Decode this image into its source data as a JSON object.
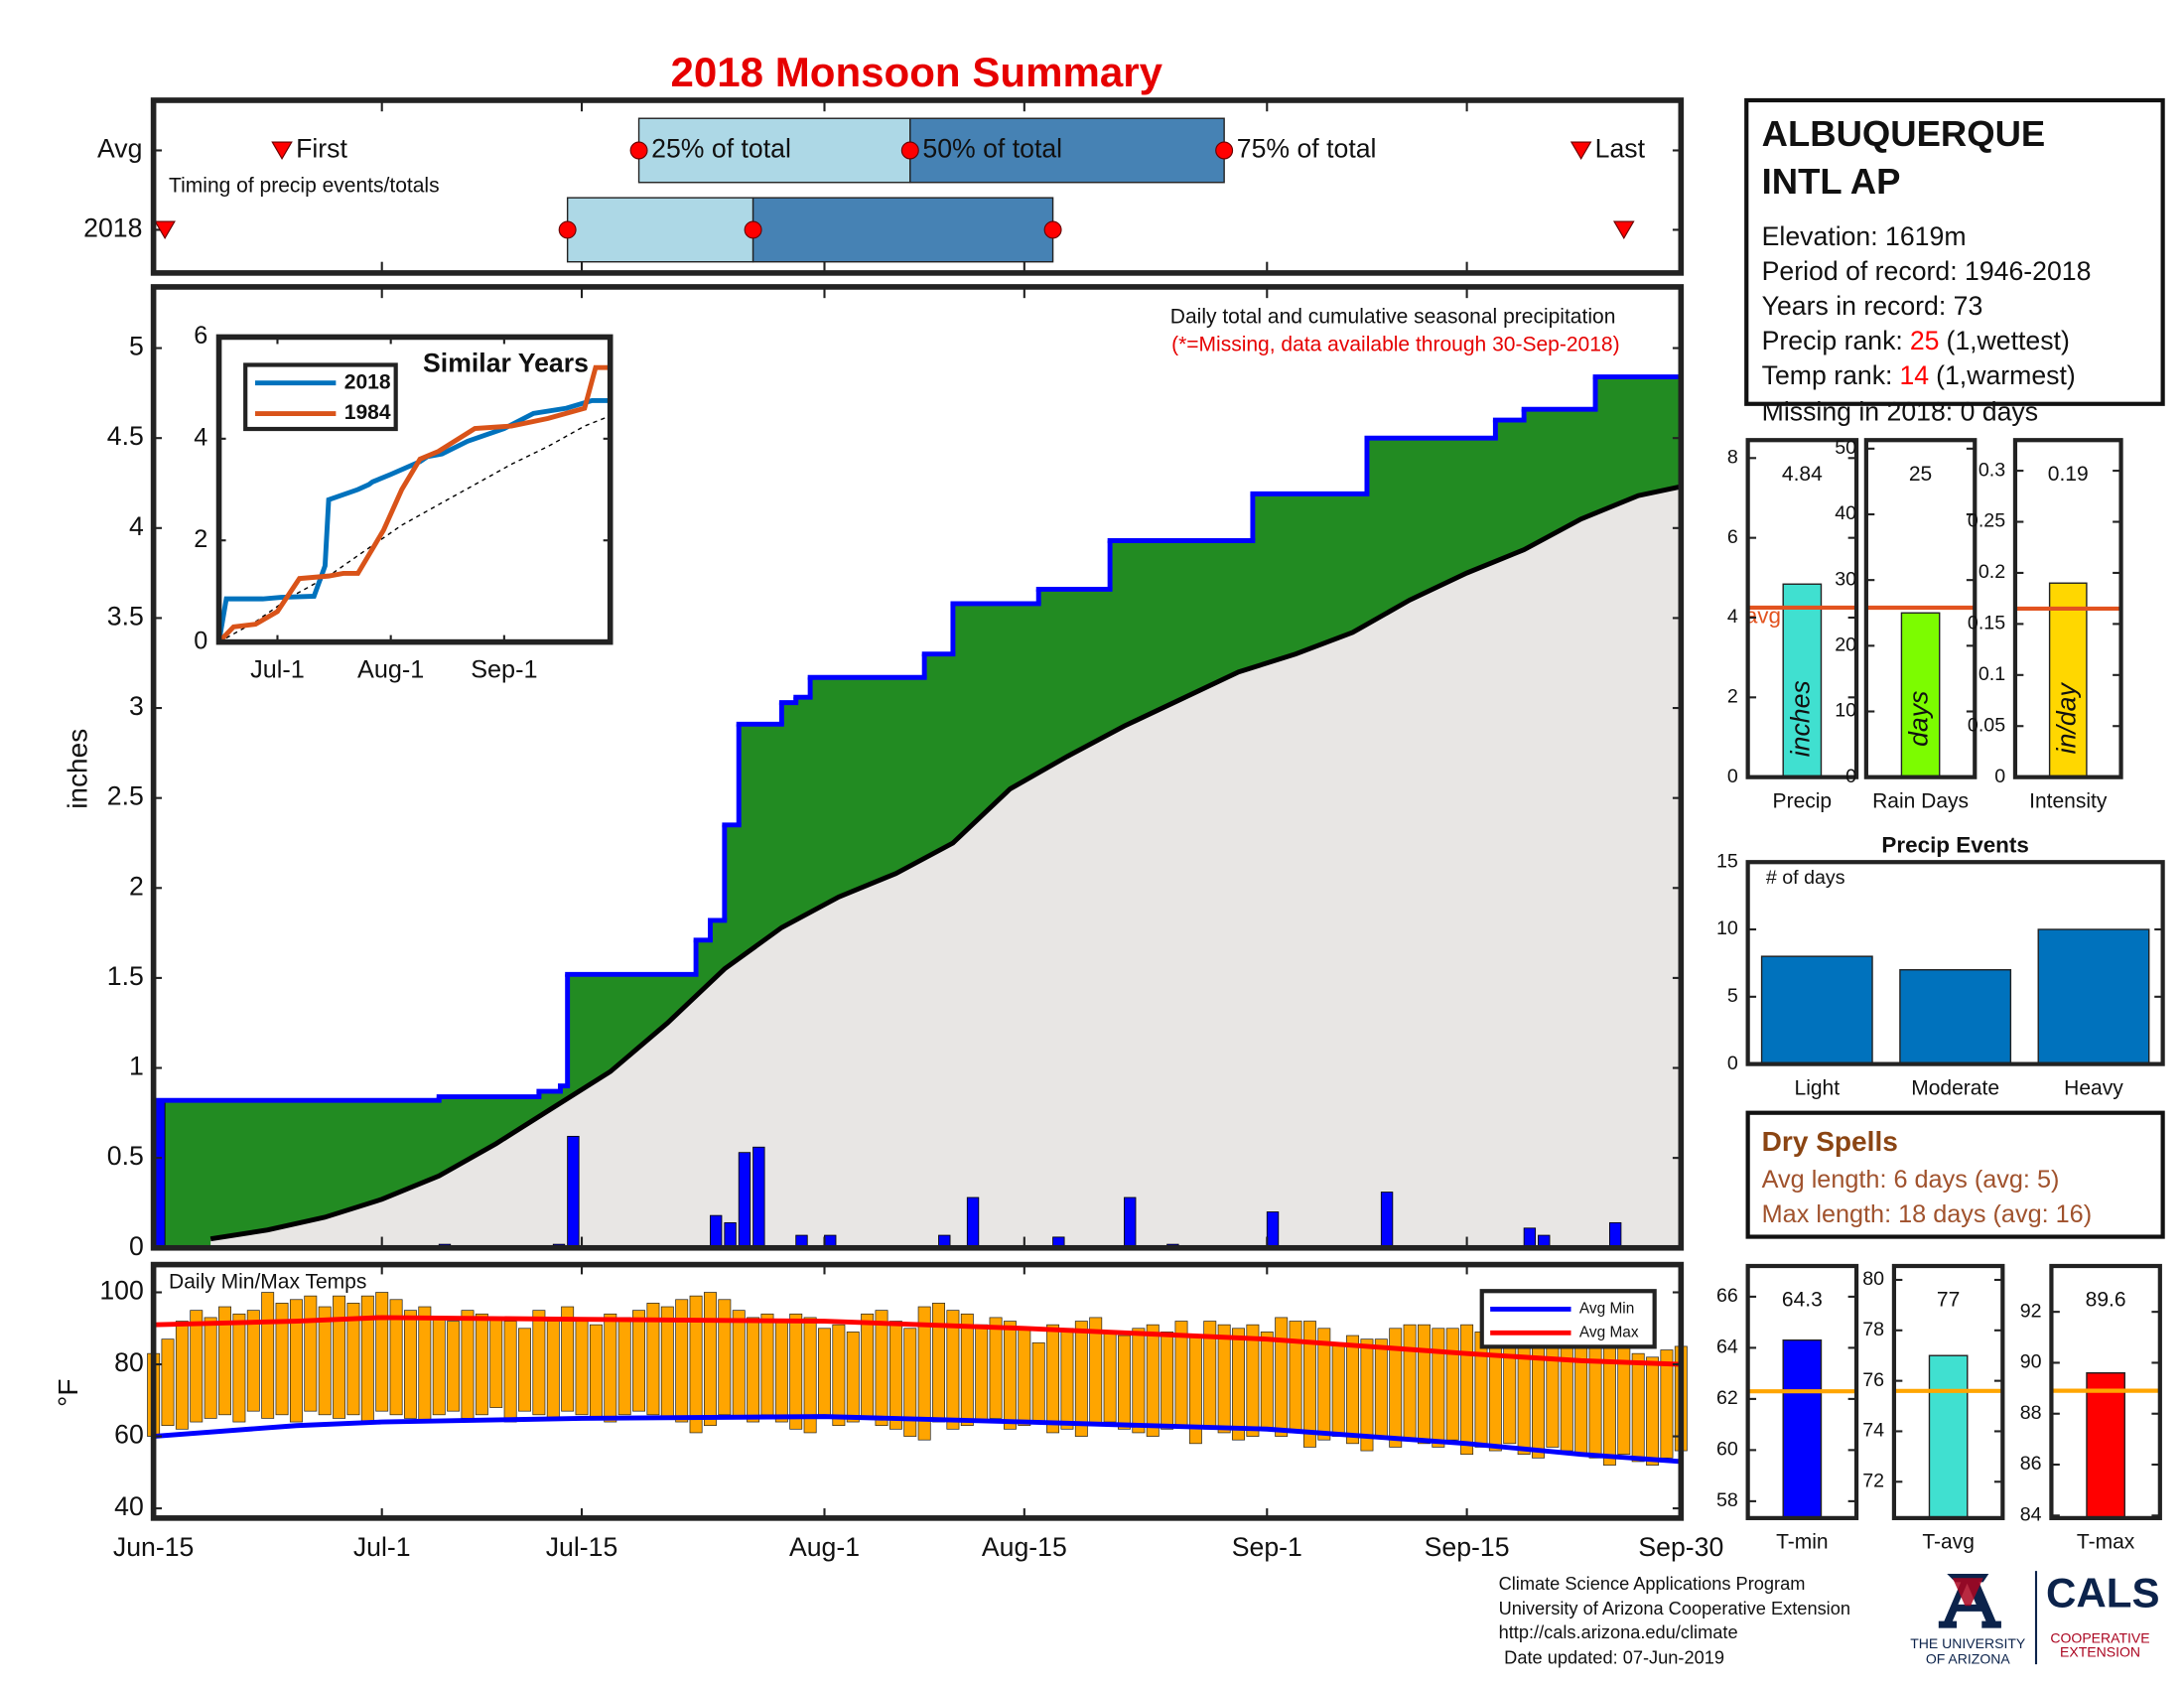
{
  "chart_data": [
    {
      "type": "timing",
      "title": "2018 Monsoon Summary",
      "note": "Timing of precip events/totals",
      "markers": [
        "First",
        "25% of total",
        "50% of total",
        "75% of total",
        "Last"
      ],
      "rows": [
        {
          "name": "Avg",
          "values": [
            9,
            34,
            53,
            75,
            100
          ]
        },
        {
          "name": "2018",
          "values": [
            0.8,
            29,
            42,
            63,
            103
          ]
        }
      ],
      "xlim": [
        0,
        107
      ],
      "colors": [
        "#add8e6",
        "#4682b4"
      ],
      "marker_color": "#ff0000"
    },
    {
      "type": "cumulative",
      "ylabel": "inches",
      "note": "Daily total and cumulative seasonal precipitation",
      "note2": "(*=Missing, data available through 30-Sep-2018)",
      "xlim": [
        0,
        107
      ],
      "ylim": [
        0,
        5.34
      ],
      "yticks": [
        0,
        0.5,
        1,
        1.5,
        2,
        2.5,
        3,
        3.5,
        4,
        4.5,
        5
      ],
      "cumulative": {
        "color": "#0000ff",
        "x": [
          0,
          20,
          27,
          28.5,
          29,
          38,
          39,
          40,
          41,
          44,
          45,
          46,
          54,
          56,
          62,
          67,
          77,
          85,
          94,
          96,
          101
        ],
        "values": [
          0.82,
          0.84,
          0.87,
          0.9,
          1.52,
          1.71,
          1.82,
          2.35,
          2.91,
          3.03,
          3.06,
          3.17,
          3.3,
          3.58,
          3.66,
          3.93,
          4.19,
          4.5,
          4.6,
          4.66,
          4.84
        ]
      },
      "average": {
        "color": "#000000",
        "x": [
          4,
          8,
          12,
          16,
          20,
          24,
          28,
          32,
          36,
          40,
          44,
          48,
          52,
          56,
          60,
          64,
          68,
          72,
          76,
          80,
          84,
          88,
          92,
          96,
          100,
          104,
          107
        ],
        "values": [
          0.05,
          0.1,
          0.17,
          0.27,
          0.4,
          0.58,
          0.78,
          0.98,
          1.25,
          1.55,
          1.78,
          1.95,
          2.08,
          2.25,
          2.55,
          2.73,
          2.9,
          3.05,
          3.2,
          3.3,
          3.42,
          3.6,
          3.75,
          3.88,
          4.05,
          4.18,
          4.23
        ]
      },
      "daily": {
        "color": "#0000ff",
        "x": [
          0,
          20,
          28,
          29,
          39,
          40,
          41,
          42,
          45,
          46,
          47,
          48,
          55,
          57,
          63,
          68,
          71,
          77,
          78,
          86,
          96,
          97,
          102
        ],
        "values": [
          0.82,
          0.02,
          0.02,
          0.62,
          0.18,
          0.14,
          0.53,
          0.56,
          0.07,
          0.01,
          0.07,
          0.01,
          0.07,
          0.28,
          0.06,
          0.28,
          0.02,
          0.01,
          0.2,
          0.31,
          0.11,
          0.07,
          0.14
        ]
      },
      "fill_above": "#228b22",
      "fill_below": "#e8e6e4"
    },
    {
      "type": "line",
      "title": "Similar Years",
      "xlim": [
        0,
        107
      ],
      "ylim": [
        0,
        6
      ],
      "yticks": [
        0,
        2,
        4,
        6
      ],
      "xticks": [
        {
          "value": 16,
          "label": "Jul-1"
        },
        {
          "value": 47,
          "label": "Aug-1"
        },
        {
          "value": 78,
          "label": "Sep-1"
        }
      ],
      "series": [
        {
          "name": "2018",
          "color": "#0072bd",
          "x": [
            0,
            2,
            12,
            17,
            26,
            29,
            30,
            38,
            41,
            42,
            47,
            55,
            57,
            61,
            68,
            78,
            86,
            95,
            102,
            107
          ],
          "values": [
            0,
            0.85,
            0.85,
            0.88,
            0.9,
            1.5,
            2.8,
            3.0,
            3.1,
            3.15,
            3.3,
            3.55,
            3.65,
            3.7,
            3.95,
            4.2,
            4.5,
            4.6,
            4.75,
            4.75
          ]
        },
        {
          "name": "1984",
          "color": "#d95319",
          "x": [
            0,
            4,
            10,
            16,
            22,
            30,
            34,
            38,
            45,
            50,
            55,
            60,
            70,
            80,
            90,
            100,
            103,
            107
          ],
          "values": [
            0,
            0.3,
            0.35,
            0.6,
            1.25,
            1.3,
            1.35,
            1.35,
            2.2,
            3.0,
            3.6,
            3.75,
            4.2,
            4.25,
            4.4,
            4.6,
            5.4,
            5.4
          ]
        }
      ],
      "average": {
        "color": "#000000",
        "x": [
          0,
          10,
          20,
          30,
          40,
          50,
          60,
          70,
          80,
          90,
          100,
          107
        ],
        "values": [
          0,
          0.4,
          0.9,
          1.3,
          1.8,
          2.3,
          2.7,
          3.1,
          3.5,
          3.85,
          4.25,
          4.45
        ]
      }
    },
    {
      "type": "range-bar",
      "title": "Daily Min/Max Temps",
      "ylabel": "°F",
      "xlim": [
        0,
        107
      ],
      "ylim": [
        37.3,
        107.7
      ],
      "yticks": [
        40,
        60,
        80,
        100
      ],
      "xticks": [
        {
          "value": 0,
          "label": "Jun-15"
        },
        {
          "value": 16,
          "label": "Jul-1"
        },
        {
          "value": 30,
          "label": "Jul-15"
        },
        {
          "value": 47,
          "label": "Aug-1"
        },
        {
          "value": 61,
          "label": "Aug-15"
        },
        {
          "value": 78,
          "label": "Sep-1"
        },
        {
          "value": 92,
          "label": "Sep-15"
        },
        {
          "value": 107,
          "label": "Sep-30"
        }
      ],
      "color": "#ffa500",
      "x": [
        0,
        1,
        2,
        3,
        4,
        5,
        6,
        7,
        8,
        9,
        10,
        11,
        12,
        13,
        14,
        15,
        16,
        17,
        18,
        19,
        20,
        21,
        22,
        23,
        24,
        25,
        26,
        27,
        28,
        29,
        30,
        31,
        32,
        33,
        34,
        35,
        36,
        37,
        38,
        39,
        40,
        41,
        42,
        43,
        44,
        45,
        46,
        47,
        48,
        49,
        50,
        51,
        52,
        53,
        54,
        55,
        56,
        57,
        58,
        59,
        60,
        61,
        62,
        63,
        64,
        65,
        66,
        67,
        68,
        69,
        70,
        71,
        72,
        73,
        74,
        75,
        76,
        77,
        78,
        79,
        80,
        81,
        82,
        83,
        84,
        85,
        86,
        87,
        88,
        89,
        90,
        91,
        92,
        93,
        94,
        95,
        96,
        97,
        98,
        99,
        100,
        101,
        102,
        103,
        104,
        105,
        106,
        107
      ],
      "min": [
        60,
        63,
        62,
        64,
        65,
        66,
        64,
        67,
        65,
        66,
        64,
        67,
        66,
        65,
        66,
        64,
        67,
        66,
        65,
        64,
        66,
        67,
        65,
        66,
        68,
        64,
        67,
        66,
        65,
        67,
        66,
        65,
        64,
        66,
        67,
        66,
        65,
        64,
        61,
        63,
        66,
        65,
        64,
        66,
        64,
        62,
        61,
        65,
        63,
        64,
        65,
        63,
        62,
        60,
        59,
        64,
        62,
        63,
        64,
        65,
        62,
        63,
        64,
        61,
        62,
        60,
        63,
        64,
        62,
        61,
        60,
        62,
        63,
        58,
        62,
        61,
        59,
        60,
        62,
        60,
        61,
        57,
        59,
        60,
        58,
        56,
        60,
        57,
        59,
        58,
        57,
        59,
        55,
        57,
        56,
        58,
        55,
        54,
        57,
        56,
        55,
        54,
        52,
        55,
        53,
        52,
        54,
        56
      ],
      "max": [
        83,
        87,
        92,
        95,
        93,
        96,
        94,
        95,
        100,
        97,
        98,
        99,
        96,
        99,
        97,
        99,
        100,
        98,
        95,
        96,
        93,
        92,
        95,
        94,
        93,
        92,
        90,
        95,
        92,
        96,
        93,
        91,
        94,
        93,
        95,
        97,
        96,
        98,
        99,
        100,
        98,
        95,
        93,
        94,
        92,
        94,
        93,
        90,
        91,
        89,
        94,
        95,
        92,
        90,
        96,
        97,
        95,
        94,
        91,
        93,
        92,
        90,
        86,
        91,
        90,
        92,
        93,
        89,
        88,
        90,
        91,
        89,
        92,
        88,
        92,
        91,
        90,
        91,
        89,
        93,
        92,
        92,
        90,
        86,
        88,
        87,
        87,
        90,
        91,
        91,
        90,
        90,
        91,
        89,
        90,
        88,
        88,
        86,
        85,
        87,
        88,
        88,
        86,
        85,
        83,
        82,
        84,
        85
      ],
      "series": [
        {
          "name": "Avg Min",
          "color": "#0000ff",
          "x": [
            0,
            10,
            16,
            30,
            47,
            61,
            78,
            92,
            100,
            107
          ],
          "values": [
            60,
            63,
            64,
            65,
            65.5,
            64,
            62,
            58,
            55,
            53
          ]
        },
        {
          "name": "Avg Max",
          "color": "#ff0000",
          "x": [
            0,
            10,
            16,
            30,
            47,
            61,
            78,
            92,
            100,
            107
          ],
          "values": [
            91,
            92,
            93,
            92.5,
            92,
            90,
            87,
            83,
            81,
            80
          ]
        }
      ]
    },
    {
      "type": "bar",
      "categories": [
        "Precip"
      ],
      "values": [
        4.84
      ],
      "unit": "inches",
      "avg": 4.25,
      "avg_label": "avg",
      "ylim": [
        0,
        8.45
      ],
      "yticks": [
        0,
        2,
        4,
        6,
        8
      ],
      "color": "#40e0d0",
      "avg_color": "#e2531f"
    },
    {
      "type": "bar",
      "categories": [
        "Rain Days"
      ],
      "values": [
        25
      ],
      "unit": "days",
      "avg": 25.8,
      "ylim": [
        0,
        51.3
      ],
      "yticks": [
        0,
        10,
        20,
        30,
        40,
        50
      ],
      "color": "#7cfc00",
      "avg_color": "#e2531f"
    },
    {
      "type": "bar",
      "categories": [
        "Intensity"
      ],
      "values": [
        0.19
      ],
      "unit": "in/day",
      "avg": 0.165,
      "ylim": [
        0,
        0.33
      ],
      "yticks": [
        0,
        0.05,
        0.1,
        0.15,
        0.2,
        0.25,
        0.3
      ],
      "color": "#ffd700",
      "avg_color": "#e2531f"
    },
    {
      "type": "bar",
      "title": "Precip Events",
      "ylabel": "# of days",
      "categories": [
        "Light",
        "Moderate",
        "Heavy"
      ],
      "values": [
        8,
        7,
        10
      ],
      "ylim": [
        0,
        15
      ],
      "yticks": [
        0,
        5,
        10,
        15
      ],
      "color": "#0072bd"
    },
    {
      "type": "bar",
      "categories": [
        "T-min"
      ],
      "values": [
        64.3
      ],
      "avg": 62.3,
      "ylim": [
        57.34,
        67.2
      ],
      "yticks": [
        58,
        60,
        62,
        64,
        66
      ],
      "color": "#0000ff",
      "avg_color": "#ffa500"
    },
    {
      "type": "bar",
      "categories": [
        "T-avg"
      ],
      "values": [
        77
      ],
      "avg": 75.6,
      "ylim": [
        70.56,
        80.55
      ],
      "yticks": [
        72,
        74,
        76,
        78,
        80
      ],
      "color": "#40e0d0",
      "avg_color": "#ffa500"
    },
    {
      "type": "bar",
      "categories": [
        "T-max"
      ],
      "values": [
        89.6
      ],
      "avg": 88.9,
      "ylim": [
        83.9,
        93.8
      ],
      "yticks": [
        84,
        86,
        88,
        90,
        92
      ],
      "color": "#ff0000",
      "avg_color": "#ffa500"
    }
  ],
  "station": {
    "name": [
      "ALBUQUERQUE",
      "INTL AP"
    ],
    "lines": [
      "Elevation: 1619m",
      "Period of record: 1946-2018",
      "Years in record: 73"
    ],
    "ranks": [
      {
        "label": "Precip rank:",
        "value": "25",
        "note": "(1,wettest)"
      },
      {
        "label": "Temp rank:",
        "value": "14",
        "note": "(1,warmest)"
      }
    ],
    "missing": "Missing in 2018: 0 days"
  },
  "dry_spells": {
    "title": "Dry Spells",
    "lines": [
      "Avg length: 6 days (avg: 5)",
      "Max length: 18 days (avg: 16)"
    ]
  },
  "footer": [
    "Climate Science Applications Program",
    "University of Arizona Cooperative Extension",
    "http://cals.arizona.edu/climate",
    "Date updated: 07-Jun-2019"
  ],
  "logo": {
    "university": [
      "THE UNIVERSITY",
      "OF ARIZONA"
    ],
    "cals": "CALS",
    "extension": [
      "COOPERATIVE",
      "EXTENSION"
    ]
  }
}
